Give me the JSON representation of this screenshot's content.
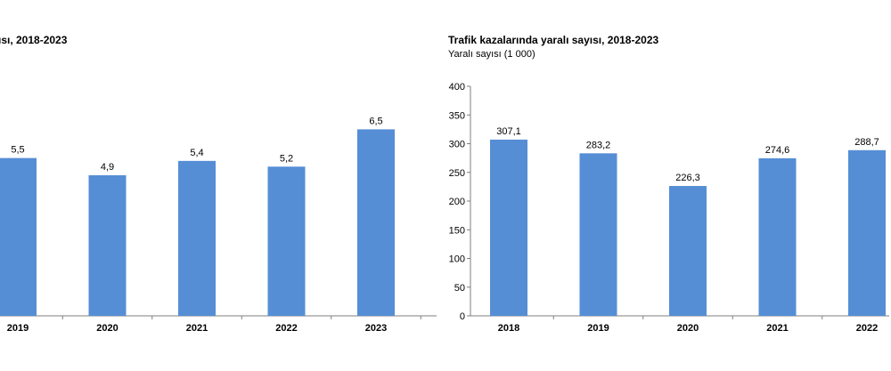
{
  "chart_data": [
    {
      "type": "bar",
      "title": "ısı, 2018-2023",
      "subtitle": "",
      "categories": [
        "2019",
        "2020",
        "2021",
        "2022",
        "2023"
      ],
      "values": [
        5.5,
        4.9,
        5.4,
        5.2,
        6.5
      ],
      "value_labels": [
        "5,5",
        "4,9",
        "5,4",
        "5,2",
        "6,5"
      ],
      "ylim": [
        0,
        8
      ],
      "color": "#558ed5",
      "grid": false,
      "legend": "none"
    },
    {
      "type": "bar",
      "title": "Trafik kazalarında yaralı sayısı, 2018-2023",
      "subtitle": "Yaralı sayısı (1 000)",
      "categories": [
        "2018",
        "2019",
        "2020",
        "2021",
        "2022"
      ],
      "values": [
        307.1,
        283.2,
        226.3,
        274.6,
        288.7
      ],
      "value_labels": [
        "307,1",
        "283,2",
        "226,3",
        "274,6",
        "288,7"
      ],
      "yticks": [
        "0",
        "50",
        "100",
        "150",
        "200",
        "250",
        "300",
        "350",
        "400"
      ],
      "ylim": [
        0,
        400
      ],
      "color": "#558ed5",
      "grid": false,
      "legend": "none"
    }
  ]
}
